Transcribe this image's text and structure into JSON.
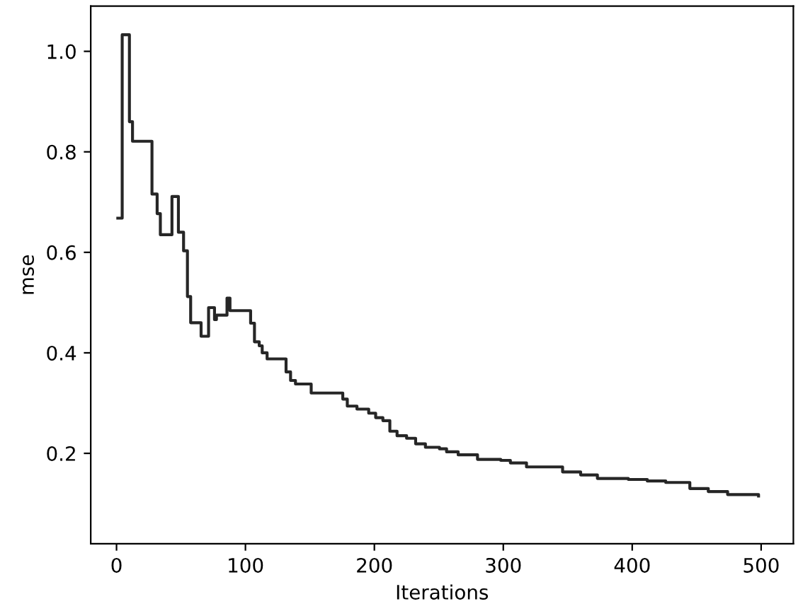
{
  "chart_data": {
    "type": "step",
    "xlabel": "Iterations",
    "ylabel": "mse",
    "xlim": [
      -20,
      525
    ],
    "ylim": [
      0.02,
      1.09
    ],
    "xticks": [
      0,
      100,
      200,
      300,
      400,
      500
    ],
    "yticks": [
      {
        "value": 0.2,
        "label": "0.2"
      },
      {
        "value": 0.4,
        "label": "0.4"
      },
      {
        "value": 0.6,
        "label": "0.6"
      },
      {
        "value": 0.8,
        "label": "0.8"
      },
      {
        "value": 1.0,
        "label": "1.0"
      }
    ],
    "grid": false,
    "legend": false,
    "series": [
      {
        "color": "#262626",
        "x": [
          1,
          4.4,
          10,
          12.4,
          27.5,
          31.5,
          34,
          43,
          48,
          52,
          55,
          57.5,
          65.6,
          71.4,
          76,
          77.5,
          85.7,
          88,
          104,
          107,
          110.7,
          113,
          116.8,
          131.5,
          135,
          138.8,
          151,
          175.5,
          179,
          186.5,
          195.6,
          201,
          206.6,
          212,
          217.6,
          225,
          232,
          239.6,
          250.5,
          256,
          265,
          280,
          298,
          305.5,
          318,
          333,
          346,
          360,
          373,
          397,
          411.7,
          426,
          444.7,
          459,
          474,
          498
        ],
        "values": [
          0.668,
          1.033,
          0.86,
          0.821,
          0.716,
          0.677,
          0.635,
          0.711,
          0.64,
          0.603,
          0.512,
          0.46,
          0.433,
          0.49,
          0.466,
          0.475,
          0.509,
          0.484,
          0.459,
          0.422,
          0.414,
          0.4,
          0.388,
          0.362,
          0.345,
          0.338,
          0.32,
          0.308,
          0.294,
          0.288,
          0.28,
          0.271,
          0.265,
          0.244,
          0.235,
          0.23,
          0.219,
          0.212,
          0.209,
          0.203,
          0.197,
          0.188,
          0.186,
          0.181,
          0.173,
          0.173,
          0.163,
          0.157,
          0.15,
          0.148,
          0.145,
          0.142,
          0.13,
          0.124,
          0.118,
          0.115
        ]
      }
    ]
  }
}
